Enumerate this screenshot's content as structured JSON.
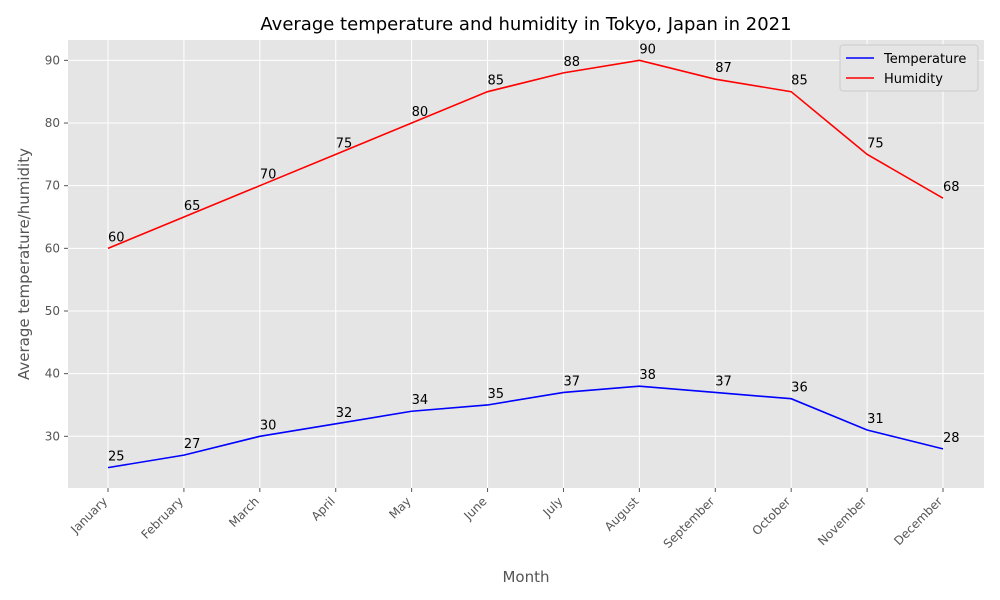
{
  "chart_data": {
    "type": "line",
    "title": "Average temperature and humidity in Tokyo, Japan in 2021",
    "xlabel": "Month",
    "ylabel": "Average temperature/humidity",
    "categories": [
      "January",
      "February",
      "March",
      "April",
      "May",
      "June",
      "July",
      "August",
      "September",
      "October",
      "November",
      "December"
    ],
    "series": [
      {
        "name": "Temperature",
        "color": "#0000ff",
        "values": [
          25,
          27,
          30,
          32,
          34,
          35,
          37,
          38,
          37,
          36,
          31,
          28
        ]
      },
      {
        "name": "Humidity",
        "color": "#ff0000",
        "values": [
          60,
          65,
          70,
          75,
          80,
          85,
          88,
          90,
          87,
          85,
          75,
          68
        ]
      }
    ],
    "ylim": [
      21.75,
      93.25
    ],
    "yticks": [
      30,
      40,
      50,
      60,
      70,
      80,
      90
    ],
    "grid": true,
    "legend": "top-right",
    "data_labels": true
  }
}
